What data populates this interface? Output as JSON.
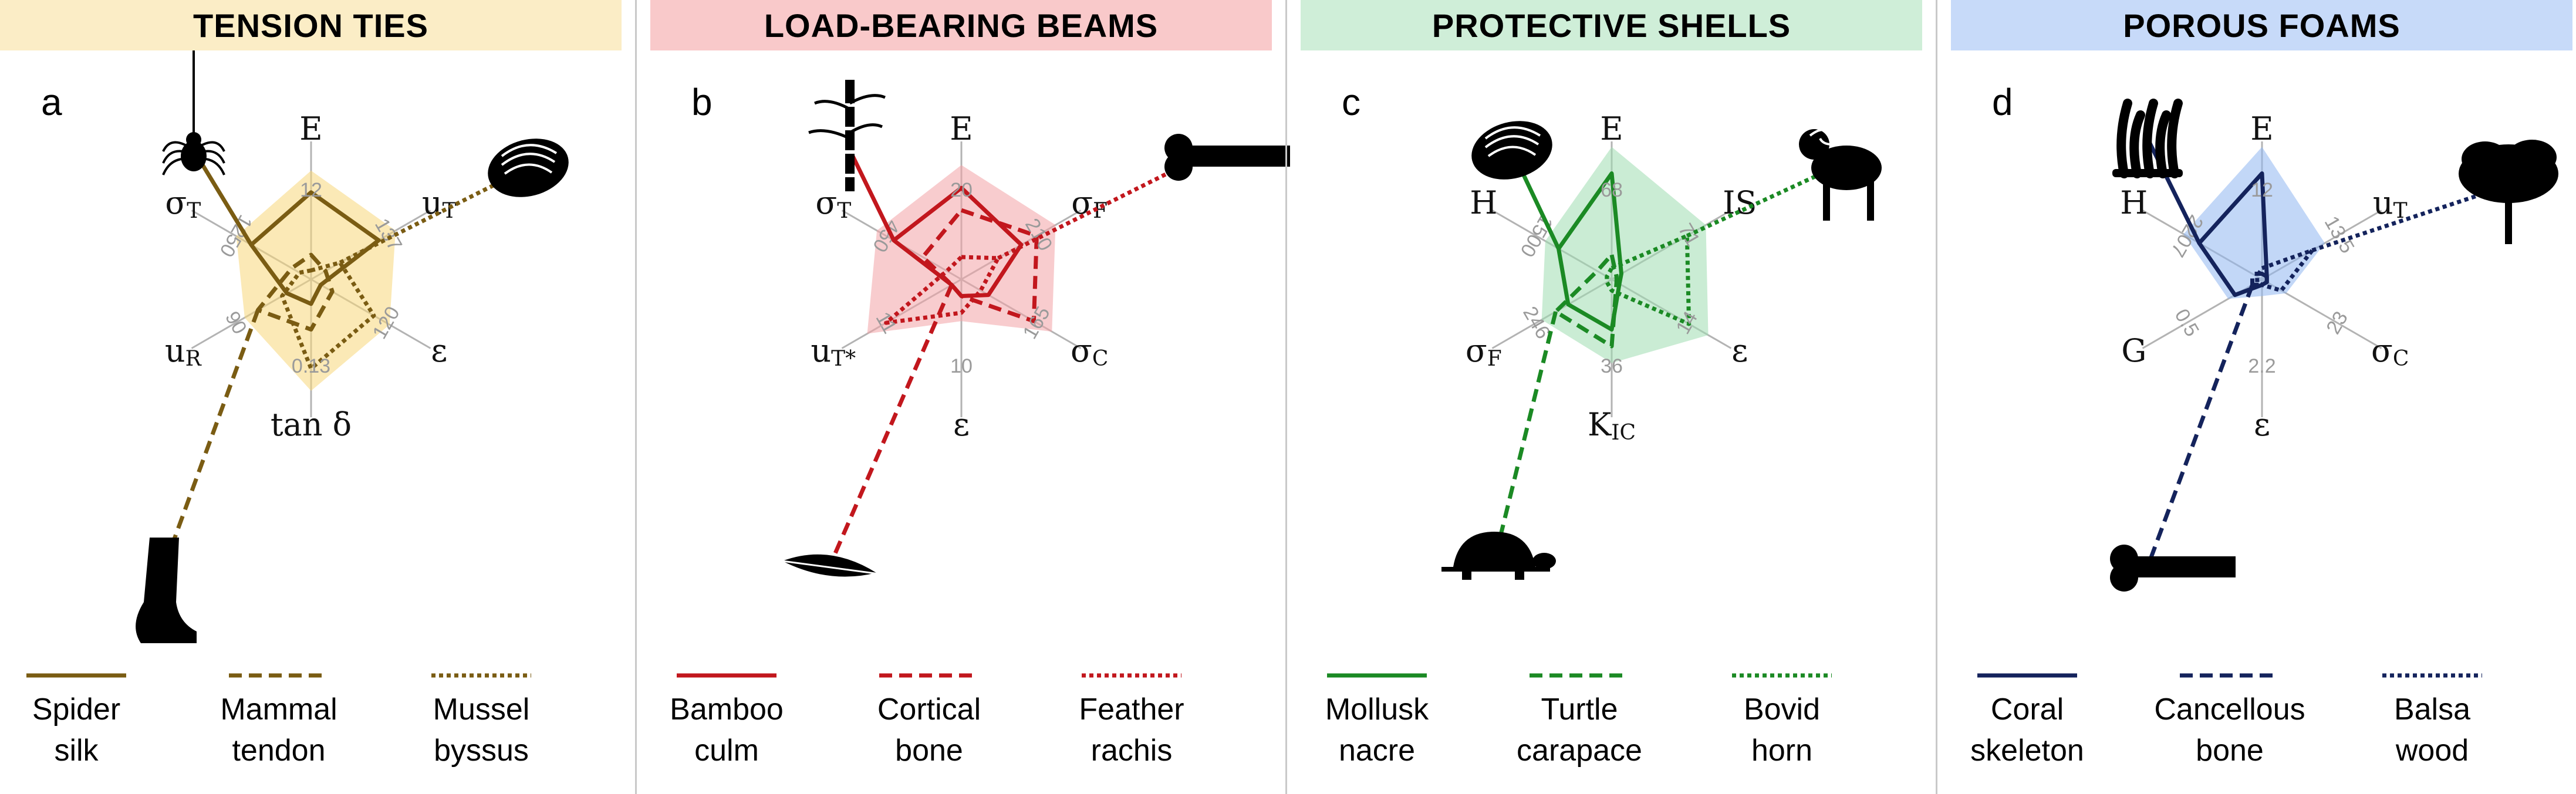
{
  "panels": [
    {
      "id": "tension",
      "title": "TENSION TIES",
      "letter": "a",
      "header_color": "#fbedc6",
      "line_color": "#7a5c13",
      "fill_color": "#f8d77a",
      "axes": [
        {
          "label": "E",
          "sub": "",
          "tick": "12"
        },
        {
          "label": "u",
          "sub": "T",
          "tick": "137"
        },
        {
          "label": "ε",
          "sub": "",
          "tick": "120"
        },
        {
          "label": "tan δ",
          "sub": "",
          "tick": "0.13"
        },
        {
          "label": "u",
          "sub": "R",
          "tick": "90"
        },
        {
          "label": "σ",
          "sub": "T",
          "tick": "1250"
        }
      ],
      "series": [
        {
          "name": "Spider silk",
          "line1": "Spider",
          "line2": "silk",
          "style": "solid",
          "values": [
            0.78,
            0.7,
            0.1,
            0.22,
            0.25,
            0.62
          ]
        },
        {
          "name": "Mammal tendon",
          "line1": "Mammal",
          "line2": "tendon",
          "style": "dashed",
          "values": [
            0.22,
            0.15,
            0.22,
            0.45,
            0.55,
            0.2
          ]
        },
        {
          "name": "Mussel byssus",
          "line1": "Mussel",
          "line2": "byssus",
          "style": "dotted",
          "values": [
            0.08,
            0.3,
            0.65,
            0.8,
            0.3,
            0.12
          ]
        }
      ],
      "silhouettes": [
        "spider-icon",
        "mussel-icon",
        "human-leg-icon"
      ]
    },
    {
      "id": "beams",
      "title": "LOAD-BEARING BEAMS",
      "letter": "b",
      "header_color": "#f9c9ca",
      "line_color": "#c2171d",
      "fill_color": "#f3a3a5",
      "axes": [
        {
          "label": "E",
          "sub": "",
          "tick": "20"
        },
        {
          "label": "σ",
          "sub": "F",
          "tick": "210"
        },
        {
          "label": "σ",
          "sub": "C",
          "tick": "165"
        },
        {
          "label": "ε",
          "sub": "",
          "tick": "10"
        },
        {
          "label": "u",
          "sub": "T*",
          "tick": "11"
        },
        {
          "label": "σ",
          "sub": "T",
          "tick": "450"
        }
      ],
      "series": [
        {
          "name": "Bamboo culm",
          "line1": "Bamboo",
          "line2": "culm",
          "style": "solid",
          "values": [
            0.82,
            0.62,
            0.28,
            0.15,
            0.1,
            0.7
          ]
        },
        {
          "name": "Cortical bone",
          "line1": "Cortical",
          "line2": "bone",
          "style": "dashed",
          "values": [
            0.62,
            0.78,
            0.75,
            0.15,
            0.1,
            0.4
          ]
        },
        {
          "name": "Feather rachis",
          "line1": "Feather",
          "line2": "rachis",
          "style": "dotted",
          "values": [
            0.2,
            0.38,
            0.2,
            0.3,
            0.78,
            0.15
          ]
        }
      ],
      "silhouettes": [
        "bamboo-icon",
        "bone-icon",
        "feather-icon"
      ]
    },
    {
      "id": "shells",
      "title": "PROTECTIVE SHELLS",
      "letter": "c",
      "header_color": "#cfeed8",
      "line_color": "#1b8a24",
      "fill_color": "#9edcb0",
      "axes": [
        {
          "label": "E",
          "sub": "",
          "tick": "68"
        },
        {
          "label": "IS",
          "sub": "",
          "tick": "71"
        },
        {
          "label": "ε",
          "sub": "",
          "tick": "14"
        },
        {
          "label": "K",
          "sub": "IC",
          "tick": "36"
        },
        {
          "label": "σ",
          "sub": "F",
          "tick": "246"
        },
        {
          "label": "H",
          "sub": "",
          "tick": "1500"
        }
      ],
      "series": [
        {
          "name": "Mollusk nacre",
          "line1": "Mollusk",
          "line2": "nacre",
          "style": "solid",
          "values": [
            0.95,
            0.1,
            0.08,
            0.45,
            0.45,
            0.55
          ]
        },
        {
          "name": "Turtle carapace",
          "line1": "Turtle",
          "line2": "carapace",
          "style": "dashed",
          "values": [
            0.22,
            0.05,
            0.05,
            0.6,
            0.58,
            0.15
          ]
        },
        {
          "name": "Bovid horn",
          "line1": "Bovid",
          "line2": "horn",
          "style": "dotted",
          "values": [
            0.1,
            0.78,
            0.8,
            0.1,
            0.05,
            0.05
          ]
        }
      ],
      "silhouettes": [
        "abalone-shell-icon",
        "ram-icon",
        "turtle-icon"
      ]
    },
    {
      "id": "foams",
      "title": "POROUS FOAMS",
      "letter": "d",
      "header_color": "#c7daf9",
      "line_color": "#14235c",
      "fill_color": "#8fb6f0",
      "axes": [
        {
          "label": "E",
          "sub": "",
          "tick": "12"
        },
        {
          "label": "u",
          "sub": "T",
          "tick": "13.5"
        },
        {
          "label": "σ",
          "sub": "C",
          "tick": "23"
        },
        {
          "label": "ε",
          "sub": "",
          "tick": "2.2"
        },
        {
          "label": "G",
          "sub": "",
          "tick": "0.5"
        },
        {
          "label": "H",
          "sub": "",
          "tick": "2207"
        }
      ],
      "series": [
        {
          "name": "Coral skeleton",
          "line1": "Coral",
          "line2": "skeleton",
          "style": "solid",
          "values": [
            0.95,
            0.05,
            0.05,
            0.05,
            0.28,
            0.65
          ]
        },
        {
          "name": "Cancellous bone",
          "line1": "Cancellous",
          "line2": "bone",
          "style": "dashed",
          "values": [
            0.05,
            0.05,
            0.05,
            0.05,
            0.1,
            0.1
          ]
        },
        {
          "name": "Balsa wood",
          "line1": "Balsa",
          "line2": "wood",
          "style": "dotted",
          "values": [
            0.1,
            0.52,
            0.2,
            0.05,
            0.05,
            0.05
          ]
        }
      ],
      "silhouettes": [
        "coral-icon",
        "tree-icon",
        "bone-icon"
      ]
    }
  ]
}
